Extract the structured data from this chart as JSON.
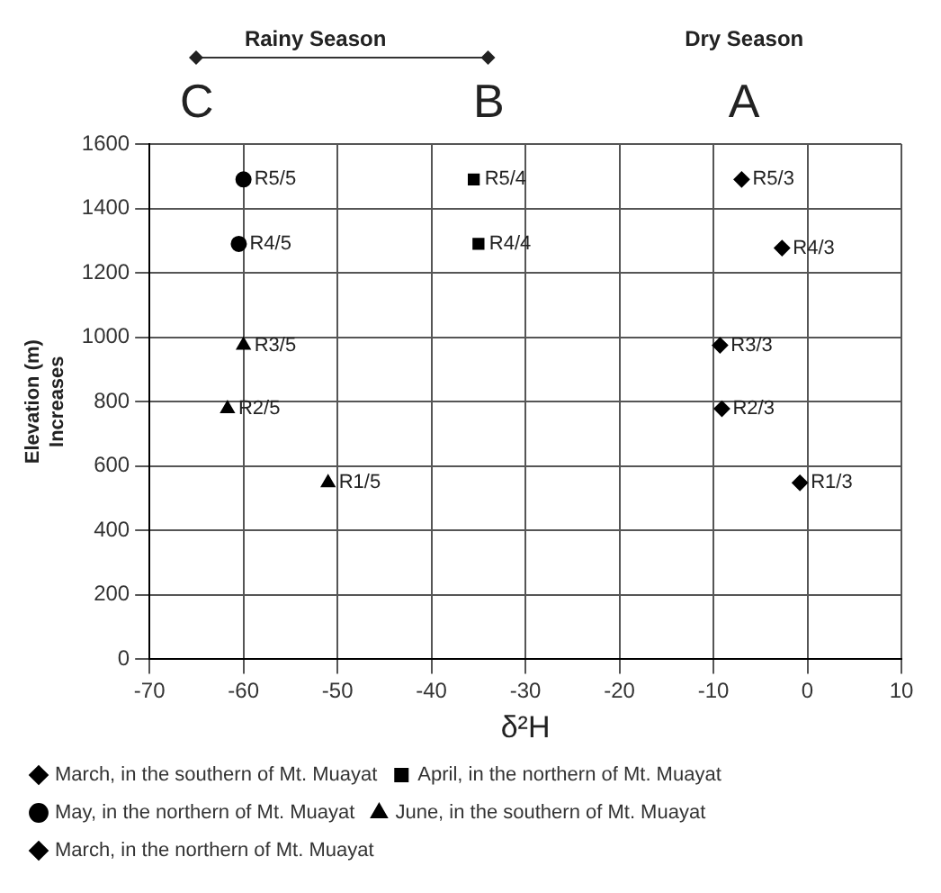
{
  "chart_data": {
    "type": "scatter",
    "xlabel": "δ²H",
    "ylabel": "Elevation (m)",
    "xlim": [
      -70,
      10
    ],
    "xticks": [
      -70,
      -60,
      -50,
      -40,
      -30,
      -20,
      -10,
      0,
      10
    ],
    "ylim": [
      0,
      1600
    ],
    "yticks": [
      0,
      200,
      400,
      600,
      800,
      1000,
      1200,
      1400,
      1600
    ],
    "grid": true,
    "legend": "bottom",
    "series": [
      {
        "name": "March, in the southern of Mt. Muayat",
        "color": "#000000",
        "marker": "diamond",
        "x": [
          -9.3,
          -9.1,
          -0.8
        ],
        "values": [
          975,
          778,
          548
        ]
      },
      {
        "name": "April, in the northern of Mt. Muayat",
        "color": "#000000",
        "marker": "square",
        "x": [
          -35.5,
          -35
        ],
        "values": [
          1490,
          1290
        ]
      },
      {
        "name": "May, in the northern of Mt. Muayat",
        "color": "#000000",
        "marker": "circle",
        "x": [
          -60,
          -60.5
        ],
        "values": [
          1490,
          1290
        ]
      },
      {
        "name": "June, in the southern of Mt. Muayat",
        "color": "#000000",
        "marker": "triangle",
        "x": [
          -60,
          -61.7,
          -51
        ],
        "values": [
          975,
          778,
          548
        ]
      },
      {
        "name": "March, in the northern of Mt. Muayat",
        "color": "#000000",
        "marker": "diamond",
        "x": [
          -7,
          -2.7
        ],
        "values": [
          1490,
          1277
        ]
      }
    ],
    "annotations": [
      "Rainy Season",
      "Dry Season",
      "C",
      "B",
      "A",
      "Increases",
      {
        "text": "R3/3",
        "x": -9.3,
        "y": 975
      },
      {
        "text": "R2/3",
        "x": -9.1,
        "y": 778
      },
      {
        "text": "R1/3",
        "x": -0.8,
        "y": 548
      },
      {
        "text": "R5/4",
        "x": -35.5,
        "y": 1490
      },
      {
        "text": "R4/4",
        "x": -35,
        "y": 1290
      },
      {
        "text": "R5/5",
        "x": -60,
        "y": 1490
      },
      {
        "text": "R4/5",
        "x": -60.5,
        "y": 1290
      },
      {
        "text": "R3/5",
        "x": -60,
        "y": 975
      },
      {
        "text": "R2/5",
        "x": -61.7,
        "y": 778
      },
      {
        "text": "R1/5",
        "x": -51,
        "y": 548
      },
      {
        "text": "R5/3",
        "x": -7,
        "y": 1490
      },
      {
        "text": "R4/3",
        "x": -2.7,
        "y": 1277
      }
    ]
  }
}
